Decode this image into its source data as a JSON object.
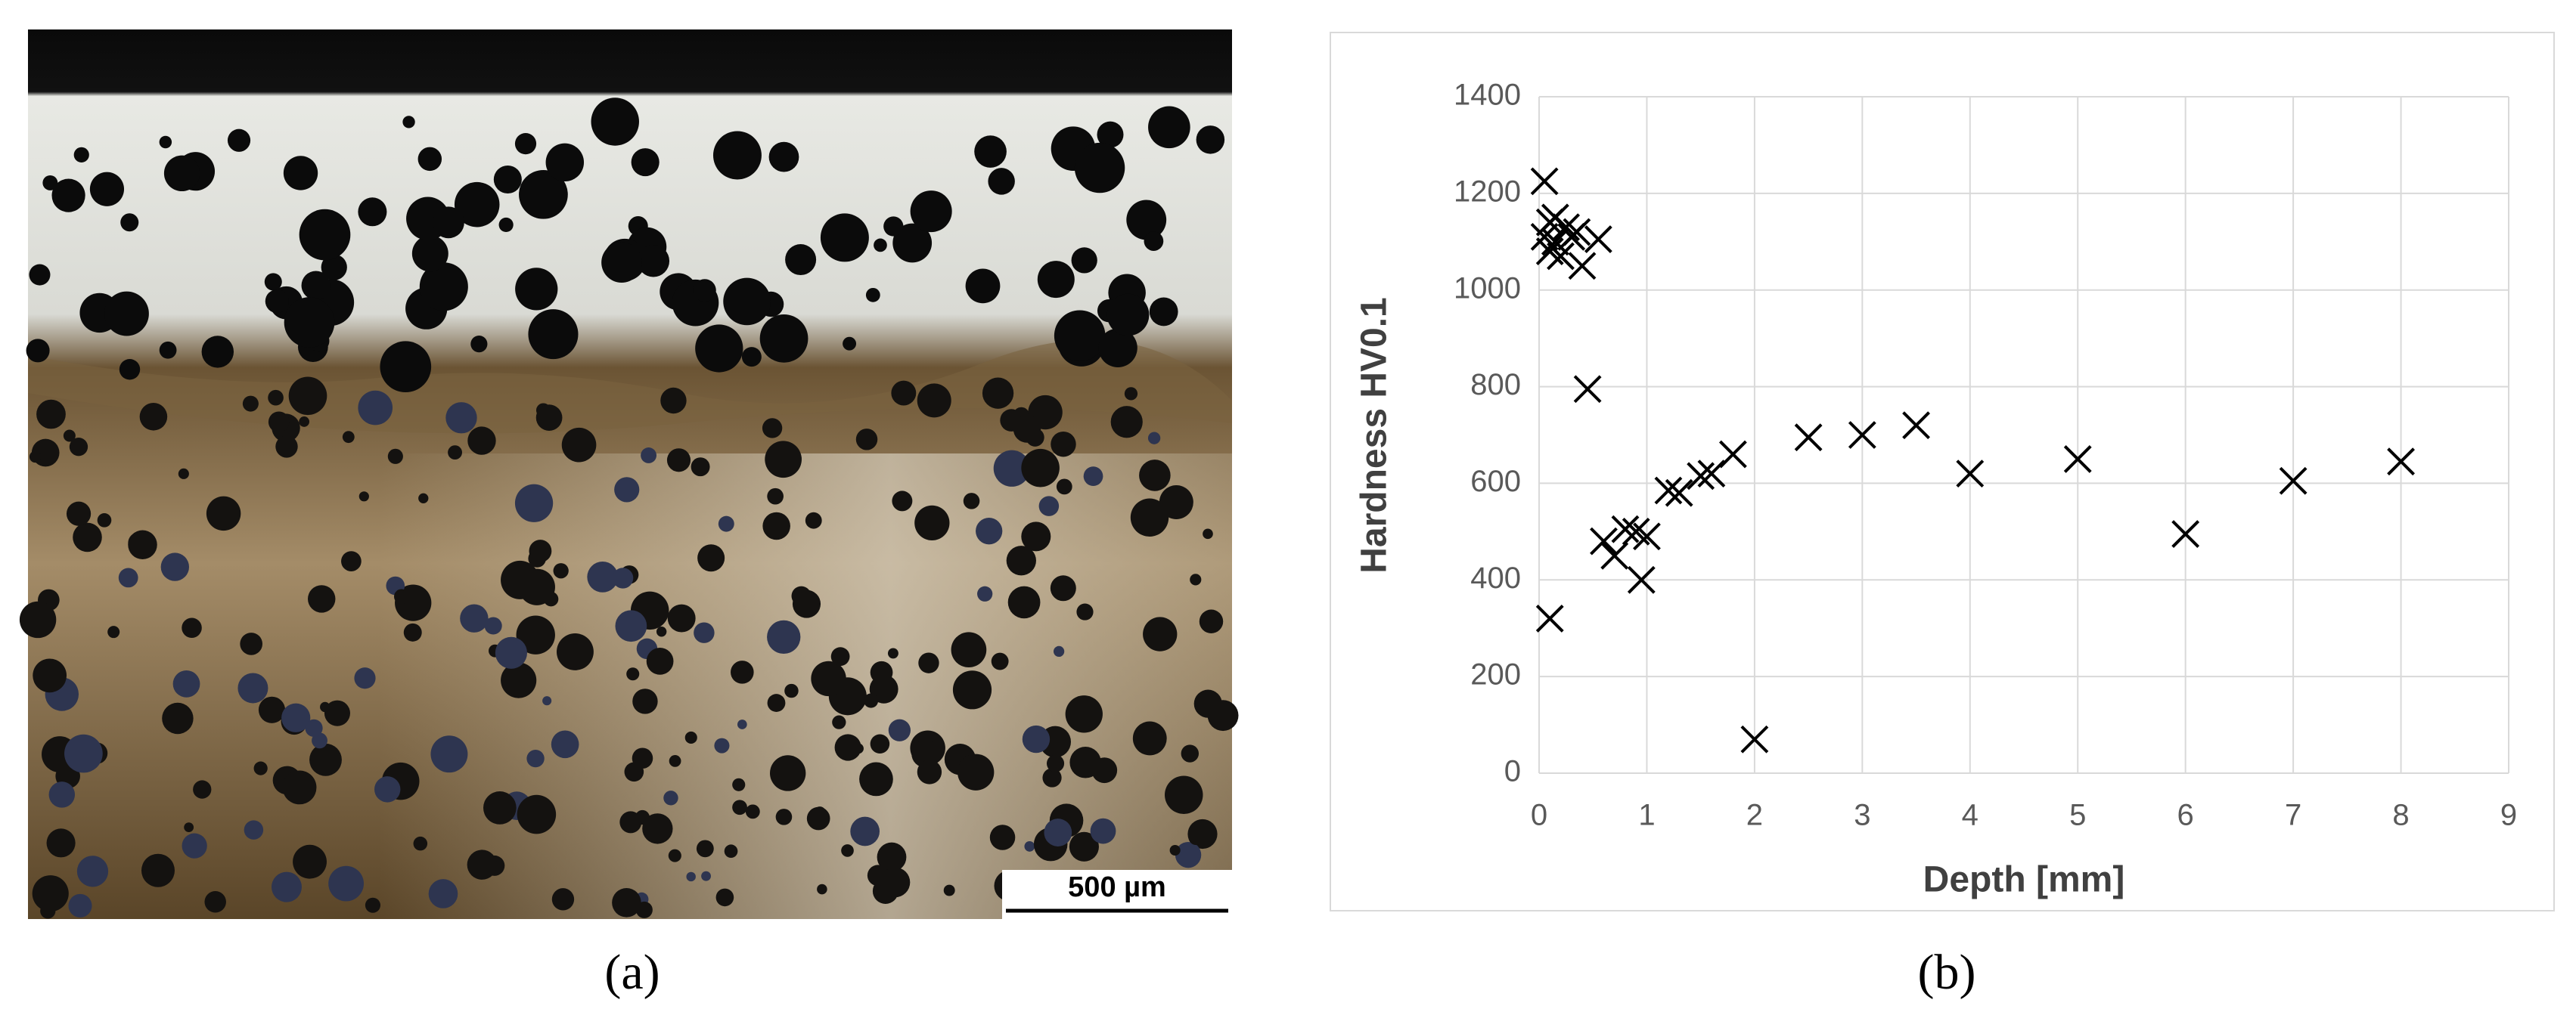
{
  "micrograph": {
    "scale_bar": "500 µm",
    "caption": "(a)"
  },
  "chart_data": {
    "type": "scatter",
    "caption": "(b)",
    "x_label": "Depth [mm]",
    "y_label": "Hardness HV0.1",
    "series": [
      {
        "name": "Hardness",
        "color": "#000000",
        "x": [
          0.05,
          0.1,
          0.15,
          0.05,
          0.1,
          0.15,
          0.2,
          0.25,
          0.3,
          0.35,
          0.4,
          0.55,
          0.45,
          0.1,
          0.6,
          0.7,
          0.8,
          0.9,
          0.95,
          1.0,
          1.2,
          1.3,
          1.5,
          1.6,
          1.8,
          2.0,
          2.5,
          3.0,
          3.5,
          4.0,
          5.0,
          6.0,
          7.0,
          8.0
        ],
        "values": [
          1225,
          1140,
          1150,
          1110,
          1080,
          1100,
          1070,
          1130,
          1110,
          1120,
          1050,
          1105,
          795,
          320,
          480,
          450,
          505,
          500,
          400,
          490,
          585,
          580,
          615,
          620,
          660,
          70,
          695,
          700,
          720,
          620,
          650,
          495,
          605,
          645
        ]
      }
    ],
    "xlim": [
      0,
      9
    ],
    "xticks": [
      0,
      1,
      2,
      3,
      4,
      5,
      6,
      7,
      8,
      9
    ],
    "ylim": [
      0,
      1400
    ],
    "yticks": [
      0,
      200,
      400,
      600,
      800,
      1000,
      1200,
      1400
    ],
    "grid": true
  }
}
